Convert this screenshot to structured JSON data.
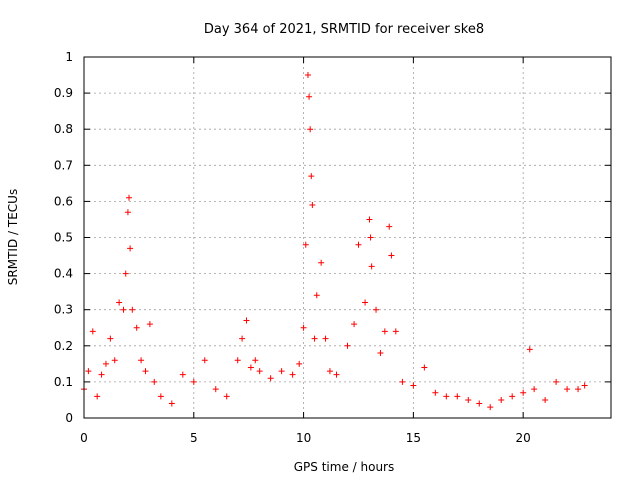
{
  "chart_data": {
    "type": "scatter",
    "title": "Day 364 of 2021, SRMTID for receiver ske8",
    "xlabel": "GPS time / hours",
    "ylabel": "SRMTID / TECUs",
    "xlim": [
      0,
      24
    ],
    "ylim": [
      0,
      1
    ],
    "grid": true,
    "marker": "+",
    "marker_color": "#ff0000",
    "x_ticks": [
      "0",
      "5",
      "10",
      "15",
      "20"
    ],
    "y_ticks": [
      "0",
      "0.1",
      "0.2",
      "0.3",
      "0.4",
      "0.5",
      "0.6",
      "0.7",
      "0.8",
      "0.9",
      "1"
    ],
    "series": [
      {
        "name": "SRMTID",
        "x": [
          0.0,
          0.2,
          0.4,
          0.6,
          0.8,
          1.0,
          1.2,
          1.4,
          1.6,
          1.8,
          1.9,
          2.0,
          2.05,
          2.1,
          2.2,
          2.4,
          2.6,
          2.8,
          3.0,
          3.2,
          3.5,
          4.0,
          4.5,
          5.0,
          5.5,
          6.0,
          6.5,
          7.0,
          7.2,
          7.4,
          7.6,
          7.8,
          8.0,
          8.5,
          9.0,
          9.5,
          9.8,
          10.0,
          10.1,
          10.2,
          10.25,
          10.3,
          10.35,
          10.4,
          10.5,
          10.6,
          10.8,
          11.0,
          11.2,
          11.5,
          12.0,
          12.3,
          12.5,
          12.8,
          13.0,
          13.05,
          13.1,
          13.3,
          13.5,
          13.7,
          13.9,
          14.0,
          14.2,
          14.5,
          15.0,
          15.5,
          16.0,
          16.5,
          17.0,
          17.5,
          18.0,
          18.5,
          19.0,
          19.5,
          20.0,
          20.3,
          20.5,
          21.0,
          21.5,
          22.0,
          22.5,
          22.8
        ],
        "y": [
          0.08,
          0.13,
          0.24,
          0.06,
          0.12,
          0.15,
          0.22,
          0.16,
          0.32,
          0.3,
          0.4,
          0.57,
          0.61,
          0.47,
          0.3,
          0.25,
          0.16,
          0.13,
          0.26,
          0.1,
          0.06,
          0.04,
          0.12,
          0.1,
          0.16,
          0.08,
          0.06,
          0.16,
          0.22,
          0.27,
          0.14,
          0.16,
          0.13,
          0.11,
          0.13,
          0.12,
          0.15,
          0.25,
          0.48,
          0.95,
          0.89,
          0.8,
          0.67,
          0.59,
          0.22,
          0.34,
          0.43,
          0.22,
          0.13,
          0.12,
          0.2,
          0.26,
          0.48,
          0.32,
          0.55,
          0.5,
          0.42,
          0.3,
          0.18,
          0.24,
          0.53,
          0.45,
          0.24,
          0.1,
          0.09,
          0.14,
          0.07,
          0.06,
          0.06,
          0.05,
          0.04,
          0.03,
          0.05,
          0.06,
          0.07,
          0.19,
          0.08,
          0.05,
          0.1,
          0.08,
          0.08,
          0.09
        ]
      }
    ]
  }
}
